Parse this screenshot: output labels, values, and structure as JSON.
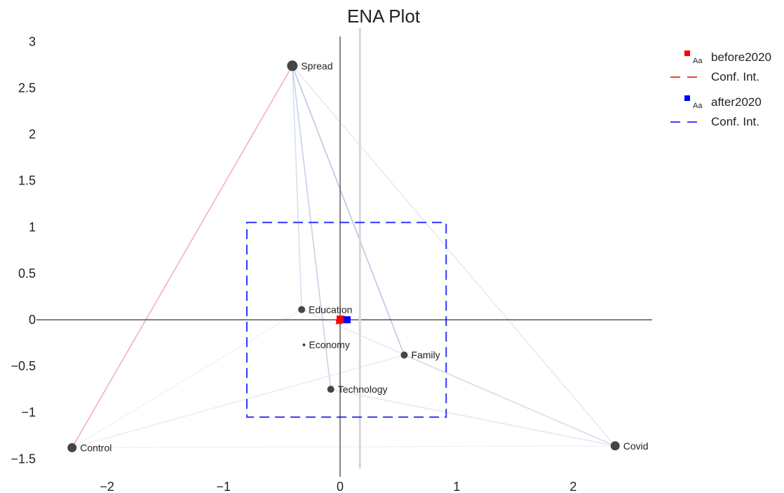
{
  "chart_data": {
    "type": "scatter",
    "title": "ENA Plot",
    "xlabel": "",
    "ylabel": "",
    "xlim": [
      -2.9,
      2.9
    ],
    "ylim": [
      -1.6,
      3.1
    ],
    "x_ticks": [
      -2,
      -1,
      0,
      1,
      2
    ],
    "y_ticks": [
      -1.5,
      -1,
      -0.5,
      0,
      0.5,
      1,
      1.5,
      2,
      2.5,
      3
    ],
    "tick_labels": {
      "x": [
        "−2",
        "−1",
        "0",
        "1",
        "2"
      ],
      "y": [
        "−1.5",
        "−1",
        "−0.5",
        "0",
        "0.5",
        "1",
        "1.5",
        "2",
        "2.5",
        "3"
      ]
    },
    "grid": false,
    "legend_position": "top-right",
    "node_color": "#454548",
    "nodes": [
      {
        "name": "Spread",
        "x": -0.41,
        "y": 2.74,
        "size": 7.5
      },
      {
        "name": "Education",
        "x": -0.33,
        "y": 0.11,
        "size": 5
      },
      {
        "name": "Economy",
        "x": -0.31,
        "y": -0.27,
        "size": 2
      },
      {
        "name": "Family",
        "x": 0.55,
        "y": -0.38,
        "size": 5
      },
      {
        "name": "Technology",
        "x": -0.08,
        "y": -0.75,
        "size": 5
      },
      {
        "name": "Control",
        "x": -2.3,
        "y": -1.38,
        "size": 6.5
      },
      {
        "name": "Covid",
        "x": 2.36,
        "y": -1.36,
        "size": 6.5
      }
    ],
    "edges": [
      {
        "from": "Spread",
        "to": "Control",
        "color": "#f4a6bc",
        "opacity": 0.9
      },
      {
        "from": "Spread",
        "to": "Family",
        "color": "#9fb8dc",
        "opacity": 0.75
      },
      {
        "from": "Spread",
        "to": "Technology",
        "color": "#9fb8dc",
        "opacity": 0.6
      },
      {
        "from": "Spread",
        "to": "Education",
        "color": "#b7c9e4",
        "opacity": 0.55
      },
      {
        "from": "Spread",
        "to": "Covid",
        "color": "#c9d6ea",
        "opacity": 0.5
      },
      {
        "from": "Covid",
        "to": "Family",
        "color": "#b7c9e4",
        "opacity": 0.6
      },
      {
        "from": "Covid",
        "to": "Technology",
        "color": "#c9d6ea",
        "opacity": 0.5
      },
      {
        "from": "Covid",
        "to": "Control",
        "color": "#dde5f1",
        "opacity": 0.45
      },
      {
        "from": "Covid",
        "to": "Education",
        "color": "#dde5f1",
        "opacity": 0.45
      },
      {
        "from": "Control",
        "to": "Family",
        "color": "#d5dfee",
        "opacity": 0.5
      },
      {
        "from": "Control",
        "to": "Education",
        "color": "#dde5f1",
        "opacity": 0.45
      },
      {
        "from": "Family",
        "to": "Education",
        "color": "#dde5f1",
        "opacity": 0.45
      }
    ],
    "series": [
      {
        "name": "before2020",
        "color": "#ff0000",
        "mean": {
          "x": 0.0,
          "y": 0.0
        },
        "conf_int": {
          "x": [
            -0.03,
            0.03
          ],
          "y": [
            -0.04,
            0.04
          ]
        }
      },
      {
        "name": "after2020",
        "color": "#0000ff",
        "mean": {
          "x": 0.06,
          "y": 0.0
        },
        "conf_int": {
          "x": [
            -0.8,
            0.91
          ],
          "y": [
            -1.05,
            1.05
          ]
        }
      }
    ],
    "extra_vertical_line": {
      "x": 0.17,
      "color": "#d6d6d6"
    },
    "legend": {
      "marker_text": "Aa",
      "items": [
        {
          "label": "before2020",
          "color": "#ff0000",
          "kind": "marker"
        },
        {
          "label": "Conf. Int.",
          "color": "#ff0000",
          "kind": "dash"
        },
        {
          "label": "after2020",
          "color": "#0000ff",
          "kind": "marker"
        },
        {
          "label": "Conf. Int.",
          "color": "#0000ff",
          "kind": "dash"
        }
      ]
    }
  }
}
